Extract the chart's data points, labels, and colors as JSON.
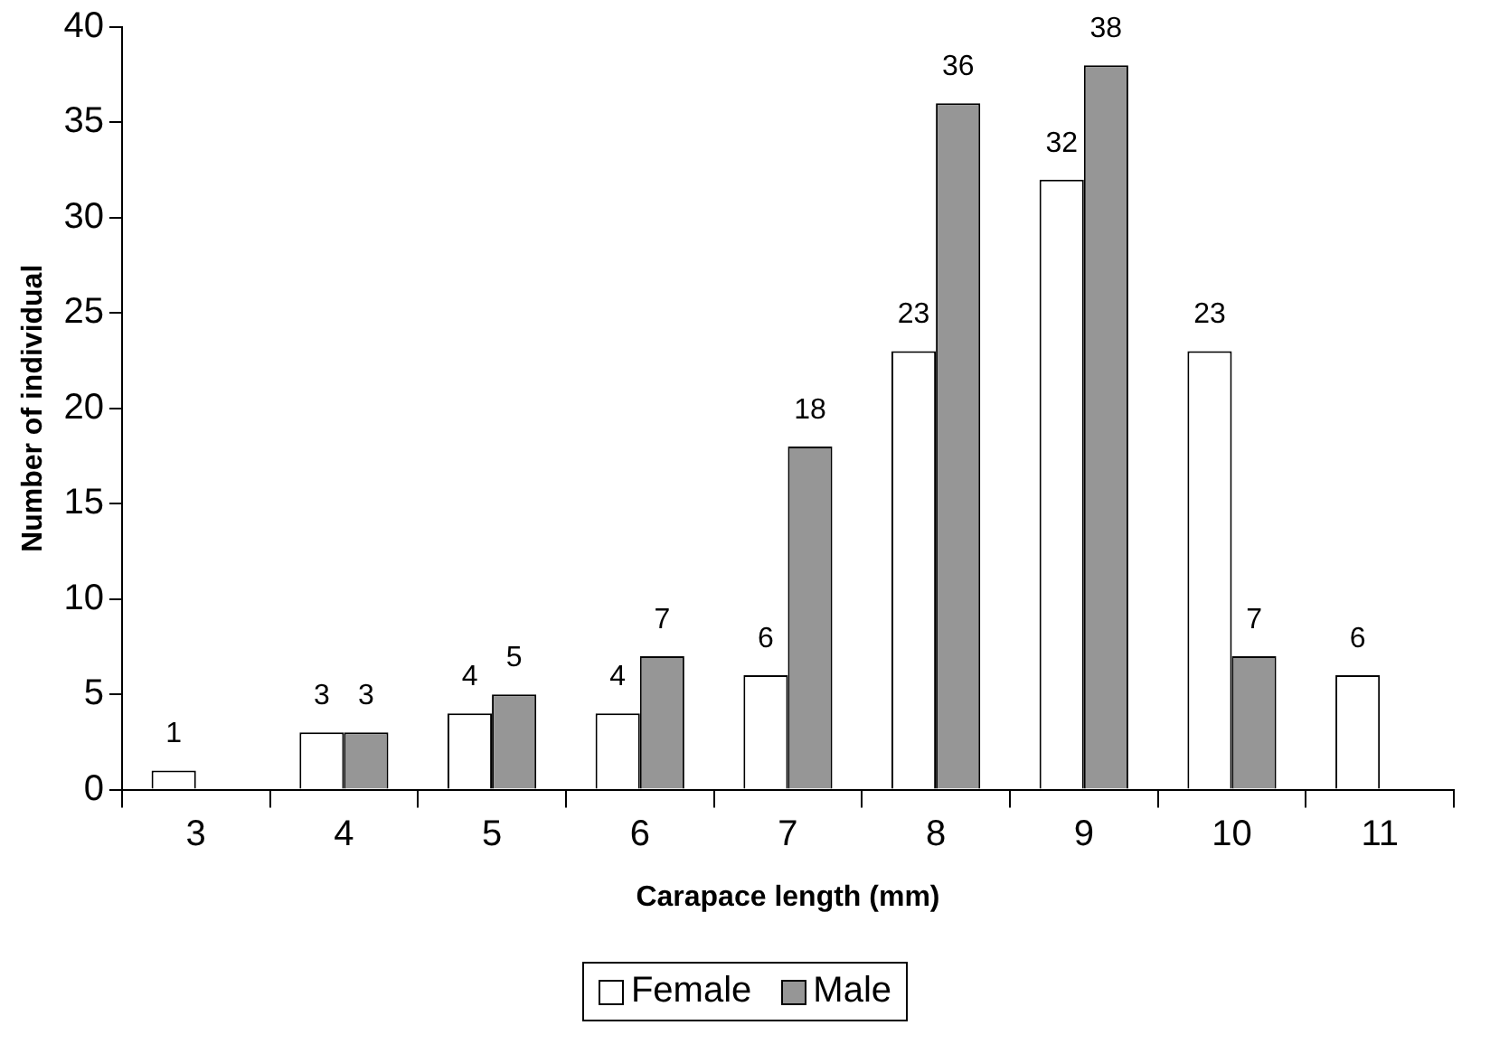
{
  "chart_data": {
    "type": "bar",
    "xlabel": "Carapace length (mm)",
    "ylabel": "Number of individual",
    "categories": [
      "3",
      "4",
      "5",
      "6",
      "7",
      "8",
      "9",
      "10",
      "11"
    ],
    "series": [
      {
        "name": "Female",
        "color": "#ffffff",
        "values": [
          1,
          3,
          4,
          4,
          6,
          23,
          32,
          23,
          6
        ]
      },
      {
        "name": "Male",
        "color": "#969696",
        "values": [
          null,
          3,
          5,
          7,
          18,
          36,
          38,
          7,
          null
        ]
      }
    ],
    "ylim": [
      0,
      40
    ],
    "yticks": [
      0,
      5,
      10,
      15,
      20,
      25,
      30,
      35,
      40
    ],
    "grid": false,
    "legend": "bottom",
    "data_labels": true
  }
}
